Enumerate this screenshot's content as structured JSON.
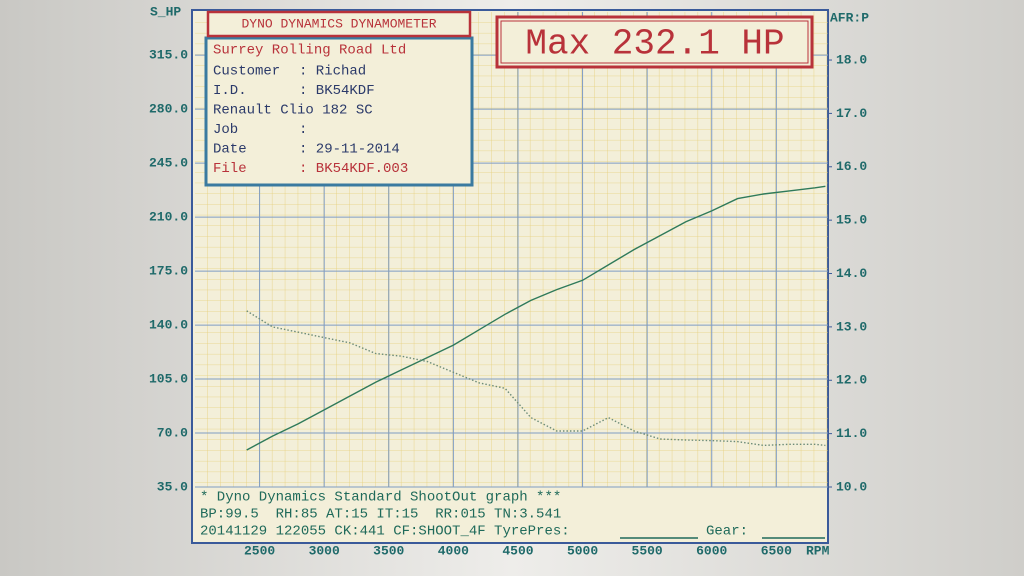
{
  "chart_data": {
    "type": "line",
    "title": "Max 232.1 HP",
    "y_label": "S_HP",
    "y2_label": "AFR:P",
    "x_label": "RPM",
    "x": [
      2400,
      2600,
      2800,
      3000,
      3200,
      3400,
      3600,
      3800,
      4000,
      4200,
      4400,
      4600,
      4800,
      5000,
      5200,
      5400,
      5600,
      5800,
      6000,
      6200,
      6400,
      6600,
      6800,
      6880
    ],
    "series": [
      {
        "color": "#2f7a5a",
        "values": [
          59,
          68,
          76,
          85,
          94,
          103,
          111,
          119,
          127,
          137,
          147,
          156,
          163,
          169,
          179,
          189,
          198,
          207,
          214,
          222,
          225,
          227,
          229,
          230
        ]
      },
      {
        "color": "#6d8c78",
        "axis": "y2",
        "linestyle": "dotted",
        "values": [
          13.3,
          13.0,
          12.9,
          12.8,
          12.7,
          12.5,
          12.45,
          12.35,
          12.15,
          11.95,
          11.85,
          11.3,
          11.05,
          11.05,
          11.3,
          11.05,
          10.9,
          10.88,
          10.87,
          10.85,
          10.78,
          10.8,
          10.8,
          10.78
        ]
      }
    ],
    "xlim": [
      2000,
      6900
    ],
    "xticks": [
      2500,
      3000,
      3500,
      4000,
      4500,
      5000,
      5500,
      6000,
      6500
    ],
    "ylim": [
      35,
      343
    ],
    "yticks": [
      {
        "value": 35,
        "label": "35.0"
      },
      {
        "value": 70,
        "label": "70.0"
      },
      {
        "value": 105,
        "label": "105.0"
      },
      {
        "value": 140,
        "label": "140.0"
      },
      {
        "value": 175,
        "label": "175.0"
      },
      {
        "value": 210,
        "label": "210.0"
      },
      {
        "value": 245,
        "label": "245.0"
      },
      {
        "value": 280,
        "label": "280.0"
      },
      {
        "value": 315,
        "label": "315.0"
      }
    ],
    "y2lim": [
      10,
      18.9
    ],
    "y2ticks": [
      {
        "value": 10,
        "label": "10.0"
      },
      {
        "value": 11,
        "label": "11.0"
      },
      {
        "value": 12,
        "label": "12.0"
      },
      {
        "value": 13,
        "label": "13.0"
      },
      {
        "value": 14,
        "label": "14.0"
      },
      {
        "value": 15,
        "label": "15.0"
      },
      {
        "value": 16,
        "label": "16.0"
      },
      {
        "value": 17,
        "label": "17.0"
      },
      {
        "value": 18,
        "label": "18.0"
      }
    ],
    "grid": true,
    "info_box": {
      "header": "DYNO DYNAMICS DYNAMOMETER",
      "company": "Surrey Rolling Road Ltd",
      "rows": [
        {
          "label": "Customer",
          "value": ": Richad"
        },
        {
          "label": "I.D.",
          "value": ": BK54KDF"
        },
        {
          "label": "Renault Clio 182 SC"
        },
        {
          "label": "Job",
          "value": ":"
        },
        {
          "label": "Date",
          "value": ": 29-11-2014"
        },
        {
          "label": "File",
          "value": ": BK54KDF.003"
        }
      ]
    },
    "footer": [
      "* Dyno Dynamics Standard ShootOut graph ***",
      "BP:99.5  RH:85 AT:15 IT:15  RR:015 TN:3.541",
      "20141129 122055 CK:441 CF:SHOOT_4F TyrePres:",
      "Gear:"
    ]
  }
}
